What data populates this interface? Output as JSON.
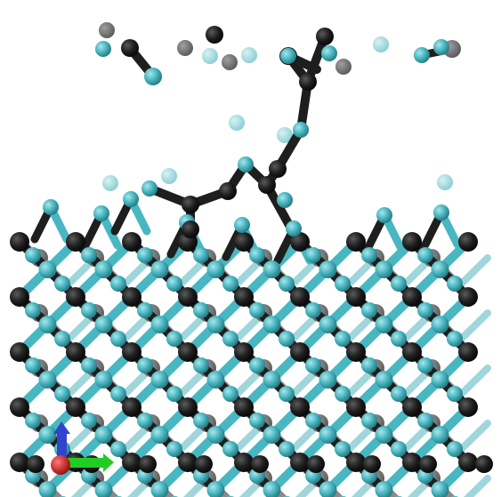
{
  "scene": {
    "background": "#ffffff",
    "description_colors": {
      "carbon": "#1e1e1e",
      "carbon_far": "#6a6a6a",
      "silicon": "#49b7c1",
      "silicon_far": "#9fd6db"
    },
    "axes": {
      "x_color": "#22cc22",
      "y_color": "#3344cc",
      "z_color": "#cc2222"
    }
  }
}
